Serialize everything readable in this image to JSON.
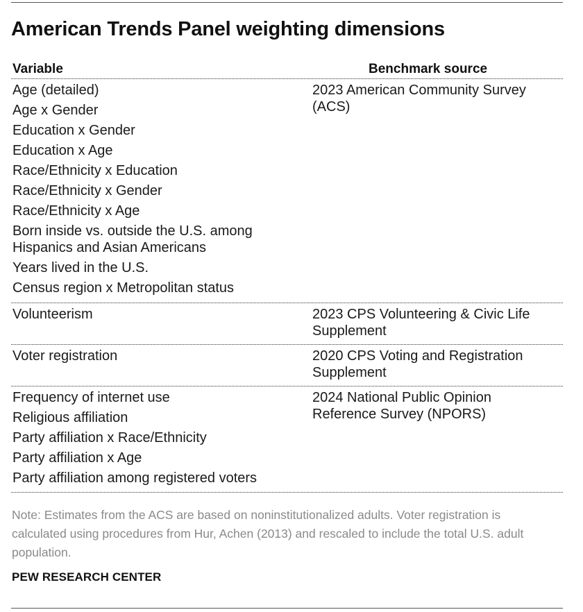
{
  "title": "American Trends Panel weighting dimensions",
  "columns": {
    "variable": "Variable",
    "source": "Benchmark source"
  },
  "groups": [
    {
      "variables": [
        "Age (detailed)",
        "Age x Gender",
        "Education x Gender",
        "Education x Age",
        "Race/Ethnicity x Education",
        "Race/Ethnicity x Gender",
        "Race/Ethnicity x Age",
        "Born inside vs. outside the U.S. among Hispanics and Asian Americans",
        "Years lived in the U.S.",
        "Census region x Metropolitan status"
      ],
      "source": "2023 American Community Survey (ACS)"
    },
    {
      "variables": [
        "Volunteerism"
      ],
      "source": "2023 CPS Volunteering & Civic Life Supplement"
    },
    {
      "variables": [
        "Voter registration"
      ],
      "source": "2020 CPS Voting and Registration Supplement"
    },
    {
      "variables": [
        "Frequency of internet use",
        "Religious affiliation",
        "Party affiliation x Race/Ethnicity",
        "Party affiliation x Age",
        "Party affiliation among registered voters"
      ],
      "source": "2024 National Public Opinion Reference Survey (NPORS)"
    }
  ],
  "note": "Note: Estimates from the ACS are based on noninstitutionalized adults. Voter registration is calculated using procedures from Hur, Achen (2013) and rescaled to include the total U.S. adult population.",
  "brand": "PEW RESEARCH CENTER"
}
